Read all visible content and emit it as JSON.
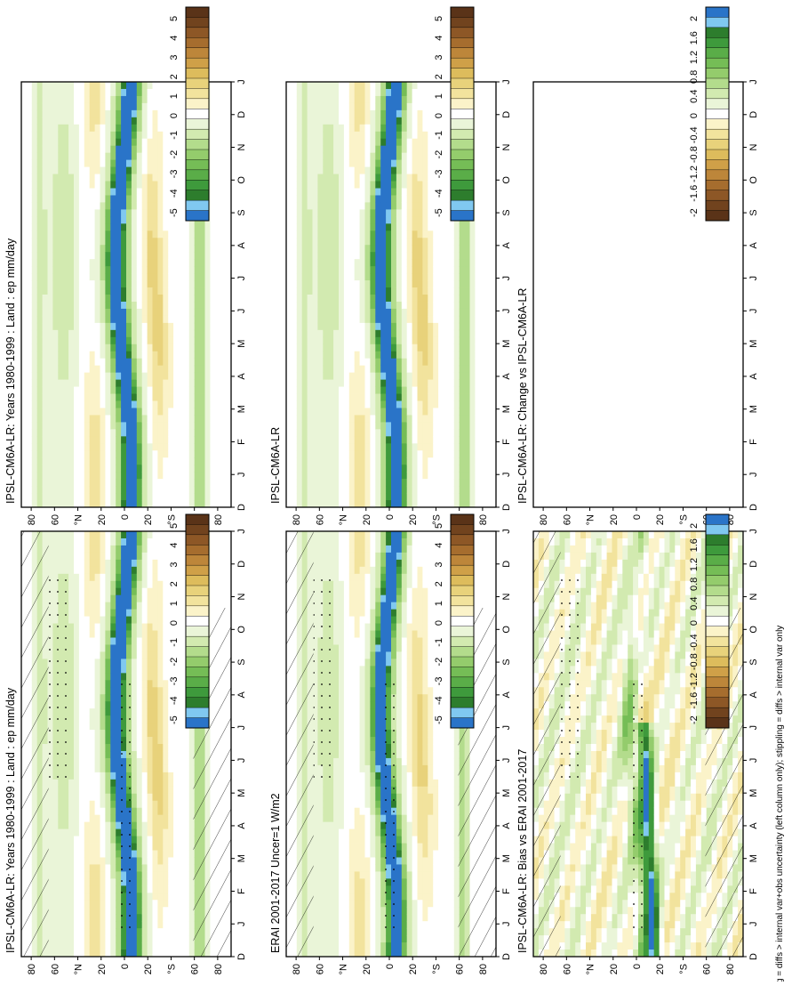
{
  "figure": {
    "footnote": "hatching = diffs > internal var+obs uncertainty (left column only); stippling = diffs > internal var only"
  },
  "colors": {
    "abs_scale": [
      "#2a74c8",
      "#80c8f0",
      "#2d7d2d",
      "#3e9a3c",
      "#5aad48",
      "#75bd56",
      "#94cc6c",
      "#b3dc8c",
      "#d2eab0",
      "#eaf5d8",
      "#ffffff",
      "#fbf3c9",
      "#f2e39d",
      "#e8d27b",
      "#ddbc5c",
      "#cfa048",
      "#bd863a",
      "#a66d2e",
      "#8d5726",
      "#71431e",
      "#5a3318"
    ],
    "diff_scale": [
      "#2a74c8",
      "#80c8f0",
      "#2d7d2d",
      "#3e9a3c",
      "#5aad48",
      "#75bd56",
      "#94cc6c",
      "#b3dc8c",
      "#d2eab0",
      "#eaf5d8",
      "#ffffff",
      "#fbf3c9",
      "#f2e39d",
      "#e8d27b",
      "#ddbc5c",
      "#cfa048",
      "#bd863a",
      "#a66d2e",
      "#8d5726",
      "#71431e",
      "#5a3318"
    ]
  },
  "axes": {
    "month_ticks": [
      "D",
      "J",
      "F",
      "M",
      "A",
      "M",
      "J",
      "J",
      "A",
      "S",
      "O",
      "N",
      "D",
      "J"
    ],
    "lat_ticks": [
      "80",
      "60",
      "°N",
      "20",
      "0",
      "20",
      "°S",
      "60",
      "80"
    ]
  },
  "colorbars": {
    "abs_ticks": [
      "5",
      "4",
      "3",
      "2",
      "1",
      "0",
      "-1",
      "-2",
      "-3",
      "-4",
      "-5"
    ],
    "diff_ticks": [
      "2",
      "1.6",
      "1.2",
      "0.8",
      "0.4",
      "0",
      "-0.4",
      "-0.8",
      "-1.2",
      "-1.6",
      "-2"
    ]
  },
  "panels": [
    {
      "id": "p1",
      "title": "IPSL-CM6A-LR: Years 1980-1999 : Land : ep mm/day",
      "kind": "abs",
      "hatch": true
    },
    {
      "id": "p2",
      "title": "IPSL-CM6A-LR: Years 1980-1999 : Land : ep mm/day",
      "kind": "abs",
      "hatch": false
    },
    {
      "id": "p3",
      "title": "ERAI 2001-2017 Uncer=1 W/m2",
      "kind": "abs",
      "hatch": true
    },
    {
      "id": "p4",
      "title": "IPSL-CM6A-LR",
      "kind": "abs",
      "hatch": false
    },
    {
      "id": "p5",
      "title": "IPSL-CM6A-LR: Bias vs ERAI 2001-2017",
      "kind": "bias",
      "hatch": true
    },
    {
      "id": "p6",
      "title": "IPSL-CM6A-LR: Change vs IPSL-CM6A-LR",
      "kind": "empty",
      "hatch": false
    }
  ],
  "chart_data": [
    {
      "type": "heatmap",
      "title": "IPSL-CM6A-LR: Years 1980-1999 : Land : ep mm/day",
      "x": "month (D..J)",
      "y": "latitude 90N..90S",
      "colorbar_range": [
        -5,
        5
      ],
      "itcz_band_min_mm_day": -5,
      "subtropical_max_mm_day": 2
    },
    {
      "type": "heatmap",
      "title": "IPSL-CM6A-LR: Years 1980-1999 : Land : ep mm/day",
      "x": "month (D..J)",
      "y": "latitude 90N..90S",
      "colorbar_range": [
        -5,
        5
      ]
    },
    {
      "type": "heatmap",
      "title": "ERAI 2001-2017 Uncer=1 W/m2",
      "x": "month (D..J)",
      "y": "latitude 90N..90S",
      "colorbar_range": [
        -5,
        5
      ]
    },
    {
      "type": "heatmap",
      "title": "IPSL-CM6A-LR",
      "x": "month (D..J)",
      "y": "latitude 90N..90S",
      "colorbar_range": [
        -5,
        5
      ]
    },
    {
      "type": "heatmap",
      "title": "IPSL-CM6A-LR: Bias vs ERAI 2001-2017",
      "x": "month (D..J)",
      "y": "latitude 90N..90S",
      "colorbar_range": [
        -2,
        2
      ]
    },
    {
      "type": "heatmap",
      "title": "IPSL-CM6A-LR: Change vs IPSL-CM6A-LR",
      "x": "month (D..J)",
      "y": "latitude 90N..90S",
      "colorbar_range": [
        -2,
        2
      ],
      "values": "empty"
    }
  ]
}
